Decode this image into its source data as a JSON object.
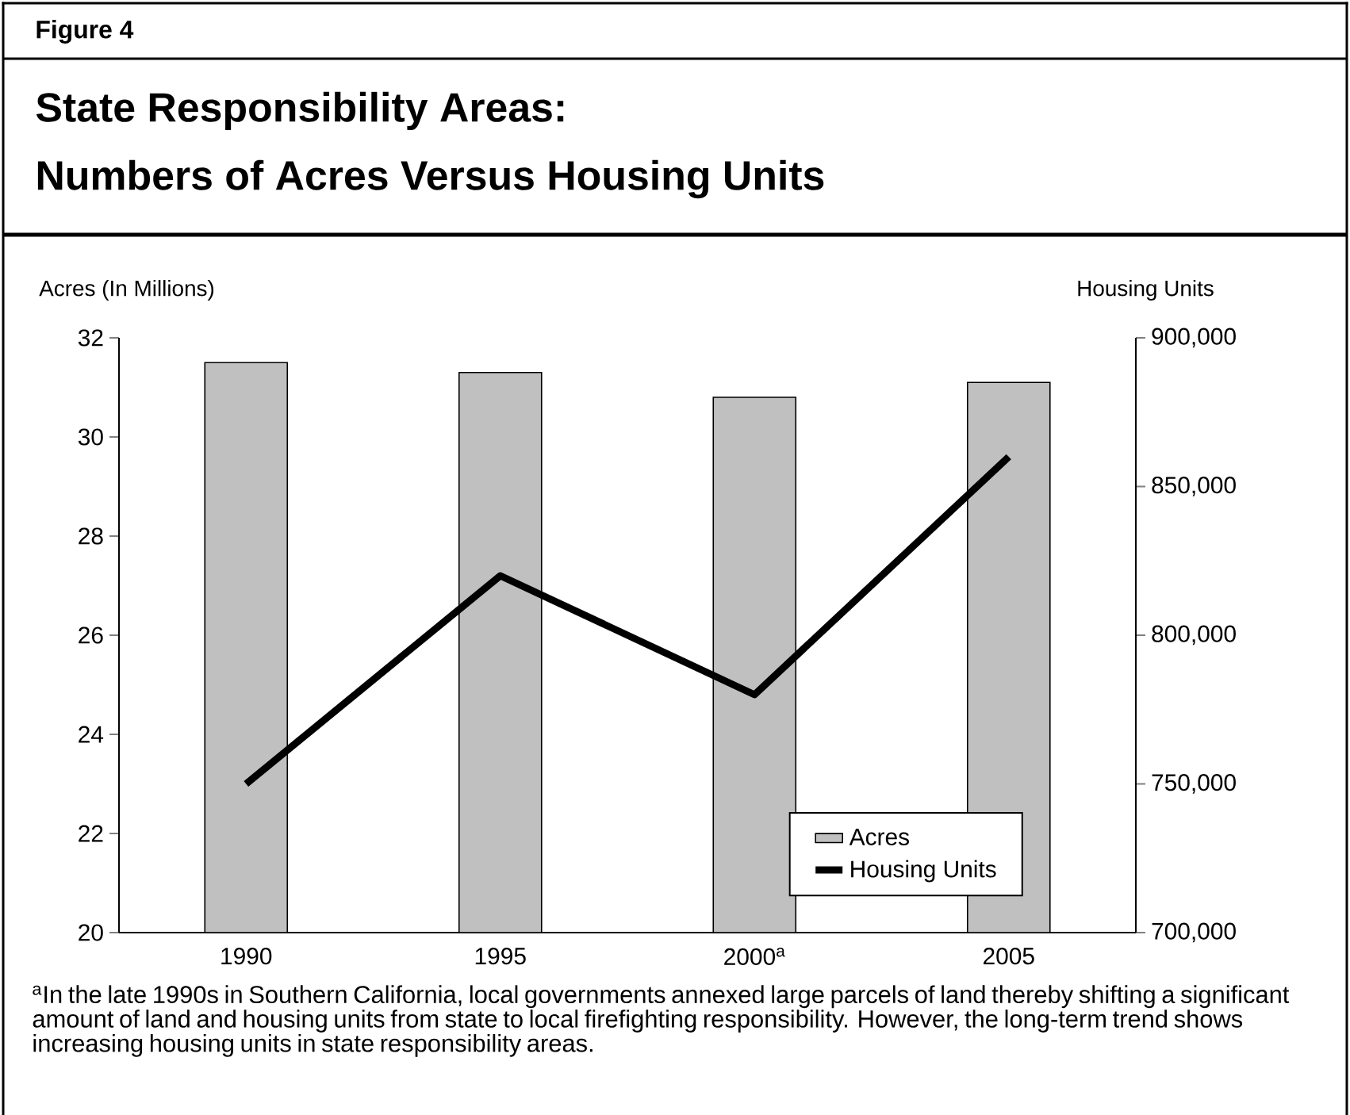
{
  "chart_data": {
    "type": "bar",
    "title": "State Responsibility Areas:",
    "subtitle": "Numbers of Acres Versus Housing Units",
    "ylabel": "Acres (In Millions)",
    "y2label": "Housing Units",
    "categories": [
      "1990",
      "1995",
      "2000$^{a}$",
      "2005"
    ],
    "series": [
      {
        "name": "Acres",
        "color": "#c0c0c0",
        "values": [
          31.5,
          31.3,
          30.8,
          31.1
        ]
      },
      {
        "name": "Housing Units",
        "type": "line",
        "axis": "y2",
        "color": "#000000",
        "values": [
          750000,
          820000,
          780000,
          860000
        ]
      }
    ],
    "ylim": [
      20,
      32
    ],
    "yticks": [
      20,
      22,
      24,
      26,
      28,
      30,
      32
    ],
    "y2lim": [
      700000,
      900000
    ],
    "y2ticks": [
      {
        "value": 700000,
        "label": "700,000"
      },
      {
        "value": 750000,
        "label": "750,000"
      },
      {
        "value": 800000,
        "label": "800,000"
      },
      {
        "value": 850000,
        "label": "850,000"
      },
      {
        "value": 900000,
        "label": "900,000"
      }
    ],
    "legend": "bottom right",
    "annotations": [
      "Figure 4",
      "$^{a}$In the late 1990s in Southern California, local governments annexed large parcels of land thereby shifting a significant amount of land and housing units from state to local firefighting responsibility. However, the long-term trend shows increasing housing units in state responsibility areas."
    ]
  }
}
